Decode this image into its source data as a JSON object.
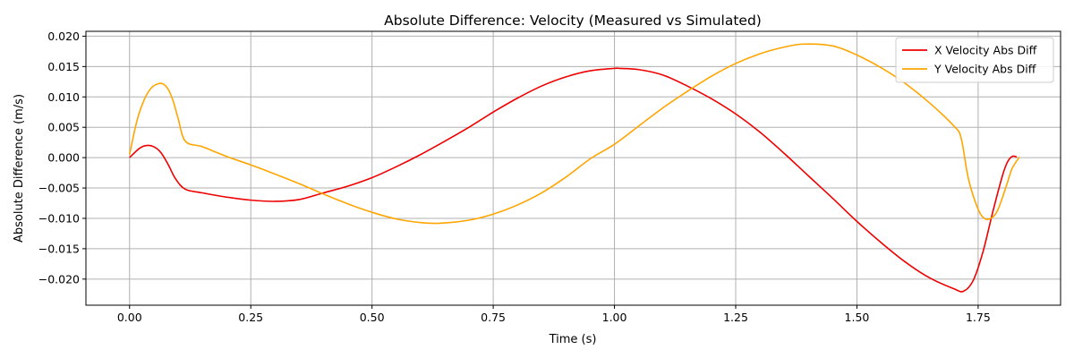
{
  "chart_data": {
    "type": "line",
    "title": "Absolute Difference: Velocity (Measured vs Simulated)",
    "xlabel": "Time (s)",
    "ylabel": "Absolute Difference (m/s)",
    "xlim": [
      -0.09,
      1.92
    ],
    "ylim": [
      -0.0243,
      0.0208
    ],
    "xticks": [
      0.0,
      0.25,
      0.5,
      0.75,
      1.0,
      1.25,
      1.5,
      1.75
    ],
    "xtick_labels": [
      "0.00",
      "0.25",
      "0.50",
      "0.75",
      "1.00",
      "1.25",
      "1.50",
      "1.75"
    ],
    "yticks": [
      -0.02,
      -0.015,
      -0.01,
      -0.005,
      0.0,
      0.005,
      0.01,
      0.015,
      0.02
    ],
    "ytick_labels": [
      "−0.020",
      "−0.015",
      "−0.010",
      "−0.005",
      "0.000",
      "0.005",
      "0.010",
      "0.015",
      "0.020"
    ],
    "grid": true,
    "legend_position": "top-right",
    "series": [
      {
        "name": "X Velocity Abs Diff",
        "color": "#ee0000",
        "x": [
          0.0,
          0.02,
          0.035,
          0.05,
          0.065,
          0.08,
          0.095,
          0.115,
          0.15,
          0.2,
          0.25,
          0.3,
          0.35,
          0.4,
          0.45,
          0.5,
          0.55,
          0.6,
          0.65,
          0.7,
          0.75,
          0.8,
          0.85,
          0.9,
          0.95,
          1.0,
          1.01,
          1.05,
          1.1,
          1.15,
          1.2,
          1.25,
          1.3,
          1.35,
          1.4,
          1.45,
          1.5,
          1.55,
          1.6,
          1.65,
          1.7,
          1.72,
          1.74,
          1.76,
          1.78,
          1.8,
          1.81,
          1.82,
          1.83
        ],
        "y": [
          0.0,
          0.0015,
          0.002,
          0.0018,
          0.0008,
          -0.0012,
          -0.0035,
          -0.0052,
          -0.0058,
          -0.0065,
          -0.007,
          -0.0072,
          -0.0069,
          -0.0058,
          -0.0047,
          -0.0033,
          -0.0015,
          0.0005,
          0.0027,
          0.005,
          0.0075,
          0.0098,
          0.0118,
          0.0133,
          0.0143,
          0.0147,
          0.0147,
          0.0145,
          0.0136,
          0.0118,
          0.0097,
          0.0072,
          0.0042,
          0.0007,
          -0.003,
          -0.0067,
          -0.0105,
          -0.014,
          -0.0172,
          -0.0198,
          -0.0216,
          -0.022,
          -0.0202,
          -0.0155,
          -0.009,
          -0.003,
          -0.0008,
          0.0002,
          0.0001
        ]
      },
      {
        "name": "Y Velocity Abs Diff",
        "color": "#ffa500",
        "x": [
          0.0,
          0.015,
          0.03,
          0.045,
          0.06,
          0.07,
          0.08,
          0.09,
          0.1,
          0.115,
          0.15,
          0.2,
          0.25,
          0.3,
          0.35,
          0.4,
          0.45,
          0.5,
          0.55,
          0.6,
          0.64,
          0.7,
          0.75,
          0.8,
          0.85,
          0.9,
          0.95,
          1.0,
          1.05,
          1.1,
          1.15,
          1.2,
          1.25,
          1.3,
          1.35,
          1.39,
          1.45,
          1.5,
          1.55,
          1.6,
          1.65,
          1.7,
          1.715,
          1.73,
          1.75,
          1.765,
          1.78,
          1.79,
          1.8,
          1.81,
          1.82,
          1.835
        ],
        "y": [
          0.0005,
          0.006,
          0.0095,
          0.0115,
          0.0122,
          0.0121,
          0.0112,
          0.0093,
          0.0065,
          0.0027,
          0.0018,
          0.0002,
          -0.0012,
          -0.0027,
          -0.0043,
          -0.006,
          -0.0076,
          -0.009,
          -0.0101,
          -0.0107,
          -0.0108,
          -0.0103,
          -0.0093,
          -0.0078,
          -0.0058,
          -0.0032,
          -0.0002,
          0.0022,
          0.0052,
          0.0082,
          0.0109,
          0.0134,
          0.0155,
          0.0171,
          0.0182,
          0.0187,
          0.0184,
          0.0169,
          0.0148,
          0.0122,
          0.009,
          0.0052,
          0.0032,
          -0.0035,
          -0.0085,
          -0.0101,
          -0.0098,
          -0.0087,
          -0.0066,
          -0.0042,
          -0.0018,
          0.0001
        ]
      }
    ]
  }
}
